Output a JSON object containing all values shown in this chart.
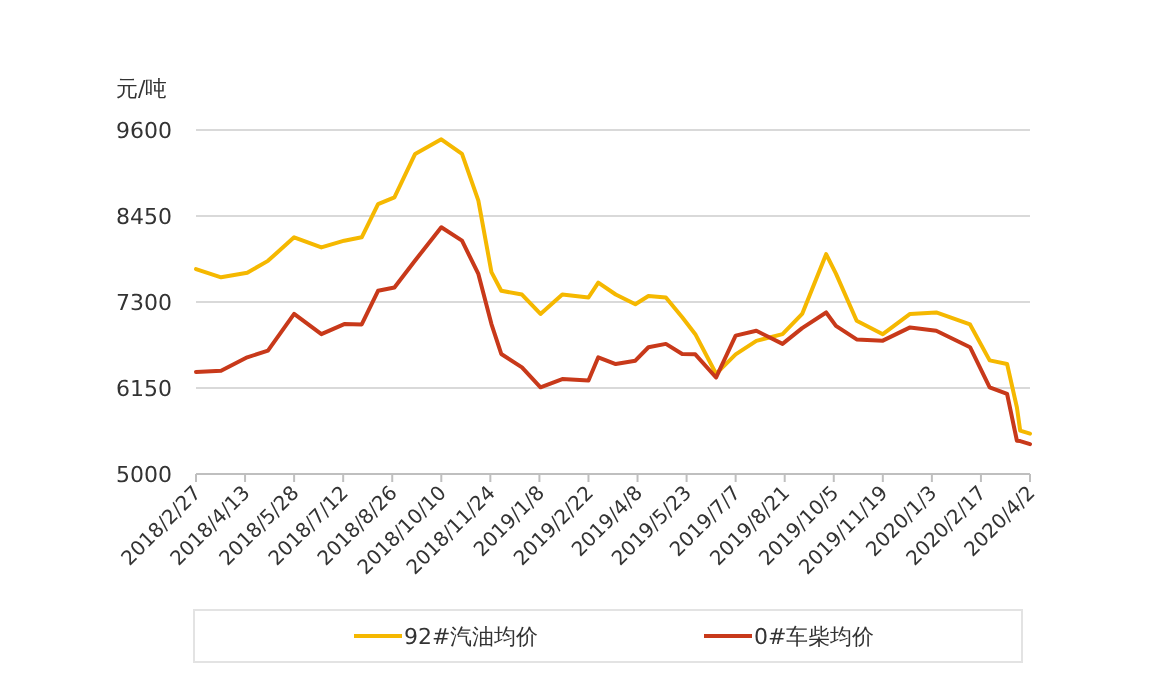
{
  "chart_data": {
    "type": "line",
    "ylabel": "元/吨",
    "x": [
      "2018-02-27",
      "2018-03-22",
      "2018-04-15",
      "2018-05-04",
      "2018-05-28",
      "2018-06-22",
      "2018-07-13",
      "2018-07-29",
      "2018-08-13",
      "2018-08-28",
      "2018-09-16",
      "2018-10-10",
      "2018-10-29",
      "2018-11-13",
      "2018-11-25",
      "2018-12-04",
      "2018-12-23",
      "2019-01-09",
      "2019-01-29",
      "2019-02-22",
      "2019-03-03",
      "2019-03-19",
      "2019-04-06",
      "2019-04-18",
      "2019-05-04",
      "2019-05-19",
      "2019-05-31",
      "2019-06-19",
      "2019-07-07",
      "2019-07-26",
      "2019-08-19",
      "2019-09-06",
      "2019-09-28",
      "2019-10-07",
      "2019-10-26",
      "2019-11-19",
      "2019-12-14",
      "2020-01-07",
      "2020-02-07",
      "2020-02-25",
      "2020-03-12",
      "2020-03-21",
      "2020-03-24",
      "2020-04-02"
    ],
    "series": [
      {
        "name": "92#汽油均价",
        "color": "#f5b800",
        "values": [
          7740,
          7630,
          7690,
          7850,
          8165,
          8030,
          8120,
          8165,
          8610,
          8700,
          9280,
          9475,
          9280,
          8655,
          7700,
          7450,
          7400,
          7140,
          7400,
          7360,
          7560,
          7400,
          7270,
          7380,
          7360,
          7095,
          6870,
          6340,
          6600,
          6780,
          6870,
          7140,
          7940,
          7680,
          7050,
          6870,
          7140,
          7160,
          7000,
          6520,
          6470,
          5890,
          5580,
          5540
        ]
      },
      {
        "name": "0#车柴均价",
        "color": "#c8391a",
        "values": [
          6365,
          6380,
          6560,
          6650,
          7140,
          6870,
          7005,
          7000,
          7450,
          7495,
          7855,
          8300,
          8120,
          7675,
          7005,
          6605,
          6425,
          6160,
          6270,
          6250,
          6560,
          6470,
          6515,
          6695,
          6740,
          6605,
          6600,
          6290,
          6850,
          6915,
          6740,
          6950,
          7160,
          6980,
          6800,
          6783,
          6960,
          6915,
          6695,
          6160,
          6070,
          5445,
          5440,
          5400
        ]
      }
    ],
    "xlim": [
      "2018-02-27",
      "2020-04-02"
    ],
    "xticks": [
      {
        "value": "2018-02-27",
        "label": "2018/2/27"
      },
      {
        "value": "2018-04-13",
        "label": "2018/4/13"
      },
      {
        "value": "2018-05-28",
        "label": "2018/5/28"
      },
      {
        "value": "2018-07-12",
        "label": "2018/7/12"
      },
      {
        "value": "2018-08-26",
        "label": "2018/8/26"
      },
      {
        "value": "2018-10-10",
        "label": "2018/10/10"
      },
      {
        "value": "2018-11-24",
        "label": "2018/11/24"
      },
      {
        "value": "2019-01-08",
        "label": "2019/1/8"
      },
      {
        "value": "2019-02-22",
        "label": "2019/2/22"
      },
      {
        "value": "2019-04-08",
        "label": "2019/4/8"
      },
      {
        "value": "2019-05-23",
        "label": "2019/5/23"
      },
      {
        "value": "2019-07-07",
        "label": "2019/7/7"
      },
      {
        "value": "2019-08-21",
        "label": "2019/8/21"
      },
      {
        "value": "2019-10-05",
        "label": "2019/10/5"
      },
      {
        "value": "2019-11-19",
        "label": "2019/11/19"
      },
      {
        "value": "2020-01-03",
        "label": "2020/1/3"
      },
      {
        "value": "2020-02-17",
        "label": "2020/2/17"
      },
      {
        "value": "2020-04-02",
        "label": "2020/4/2"
      }
    ],
    "ylim": [
      5000,
      9600
    ],
    "yticks": [
      5000,
      6150,
      7300,
      8450,
      9600
    ],
    "grid": "y",
    "legend": "bottom",
    "marker": "none",
    "line_style": "solid"
  }
}
